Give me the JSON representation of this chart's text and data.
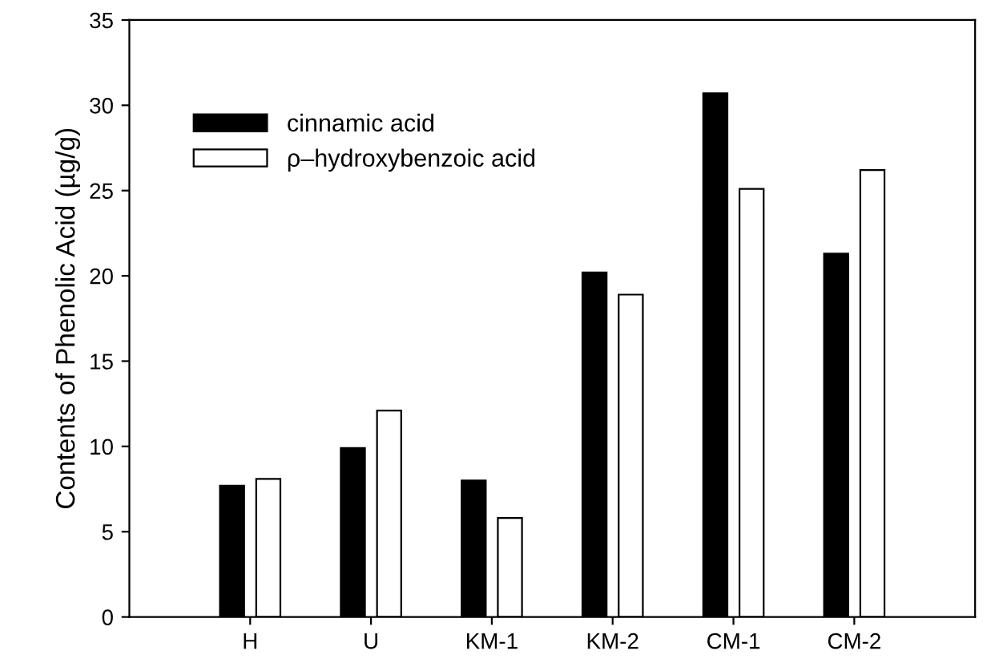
{
  "chart_data": {
    "type": "bar",
    "ylabel": "Contents of Phenolic Acid (µg/g)",
    "categories": [
      "H",
      "U",
      "KM-1",
      "KM-2",
      "CM-1",
      "CM-2"
    ],
    "series": [
      {
        "name": "cinnamic acid",
        "color": "#000000",
        "values": [
          7.7,
          9.9,
          8.0,
          20.2,
          30.7,
          21.3
        ]
      },
      {
        "name": "ρ–hydroxybenzoic acid",
        "color": "#ffffff",
        "values": [
          8.1,
          12.1,
          5.8,
          18.9,
          25.1,
          26.2
        ]
      }
    ],
    "ylim": [
      0,
      35
    ],
    "yticks": [
      0,
      5,
      10,
      15,
      20,
      25,
      30,
      35
    ],
    "grid": false,
    "legend": "top left"
  }
}
